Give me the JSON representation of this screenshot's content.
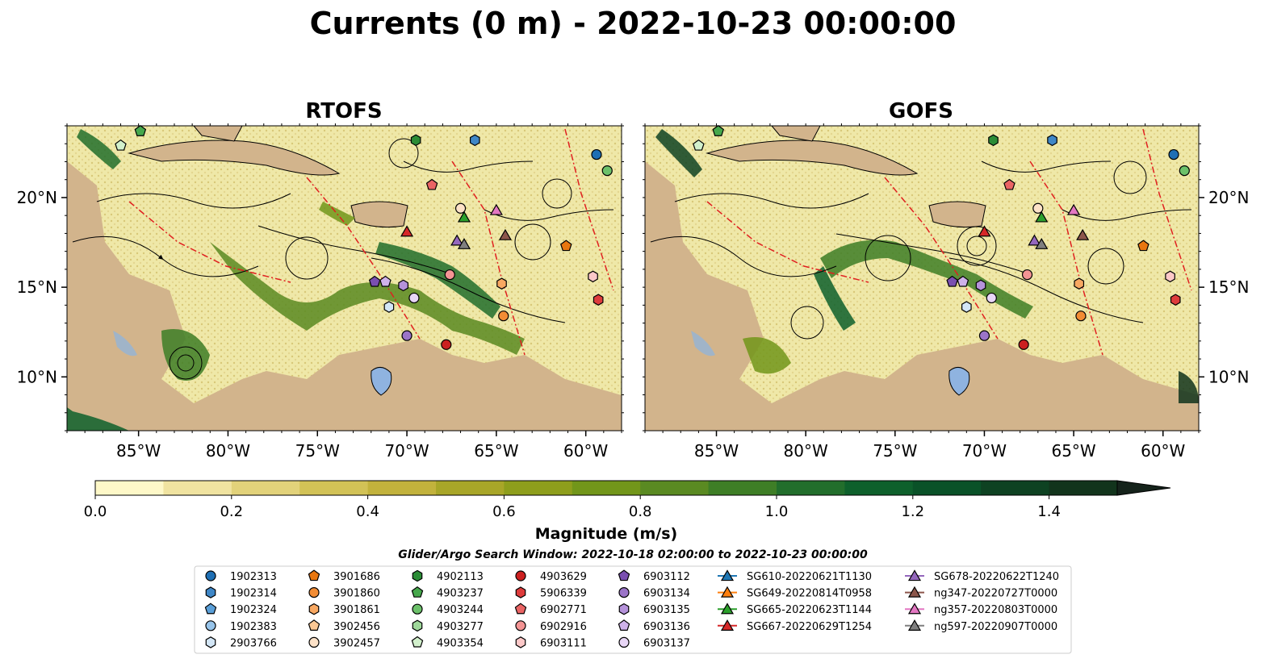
{
  "figure": {
    "title": "Currents (0 m) - 2022-10-23 00:00:00",
    "search_window": "Glider/Argo Search Window: 2022-10-18 02:00:00 to 2022-10-23 00:00:00"
  },
  "chart_data": {
    "type": "heatmap",
    "variable": "Currents (0 m)",
    "valid_time": "2022-10-23 00:00:00",
    "panels": [
      {
        "title": "RTOFS",
        "ytick_side": "left"
      },
      {
        "title": "GOFS",
        "ytick_side": "right"
      }
    ],
    "x_ticks": [
      {
        "value": -85,
        "label": "85°W"
      },
      {
        "value": -80,
        "label": "80°W"
      },
      {
        "value": -75,
        "label": "75°W"
      },
      {
        "value": -70,
        "label": "70°W"
      },
      {
        "value": -65,
        "label": "65°W"
      },
      {
        "value": -60,
        "label": "60°W"
      }
    ],
    "y_ticks": [
      {
        "value": 10,
        "label": "10°N"
      },
      {
        "value": 15,
        "label": "15°N"
      },
      {
        "value": 20,
        "label": "20°N"
      }
    ],
    "xlim": [
      -89,
      -58
    ],
    "ylim": [
      7,
      24
    ],
    "grid": false,
    "overlays": [
      "streamlines",
      "EEZ boundaries (red dash-dot)",
      "bathymetry contours",
      "coastline"
    ],
    "colorbar": {
      "label": "Magnitude (m/s)",
      "min": 0.0,
      "max": 1.5,
      "extend": "max",
      "ticks": [
        {
          "value": 0.0,
          "label": "0.0"
        },
        {
          "value": 0.2,
          "label": "0.2"
        },
        {
          "value": 0.4,
          "label": "0.4"
        },
        {
          "value": 0.6,
          "label": "0.6"
        },
        {
          "value": 0.8,
          "label": "0.8"
        },
        {
          "value": 1.0,
          "label": "1.0"
        },
        {
          "value": 1.2,
          "label": "1.2"
        },
        {
          "value": 1.4,
          "label": "1.4"
        }
      ],
      "colors": [
        "#fef8c8",
        "#f0e3a0",
        "#e2d27a",
        "#d2c256",
        "#c2b23c",
        "#a8a628",
        "#8e9e1c",
        "#72961a",
        "#5a8a22",
        "#3e7e26",
        "#226e2c",
        "#0e602c",
        "#0a5228",
        "#0e4222",
        "#12341c",
        "#142a16",
        "#15231b"
      ]
    },
    "legend": {
      "columns": [
        [
          {
            "label": "1902313",
            "marker": "circle",
            "color": "#1f6fb4"
          },
          {
            "label": "1902314",
            "marker": "hexagon",
            "color": "#3f87c7"
          },
          {
            "label": "1902324",
            "marker": "pentagon",
            "color": "#5a9fd8"
          },
          {
            "label": "1902383",
            "marker": "circle",
            "color": "#97c4ea"
          },
          {
            "label": "2903766",
            "marker": "hexagon",
            "color": "#d3e6f6"
          }
        ],
        [
          {
            "label": "3901686",
            "marker": "pentagon",
            "color": "#e8760f"
          },
          {
            "label": "3901860",
            "marker": "circle",
            "color": "#f28c34"
          },
          {
            "label": "3901861",
            "marker": "hexagon",
            "color": "#f8a862"
          },
          {
            "label": "3902456",
            "marker": "pentagon",
            "color": "#fcc894"
          },
          {
            "label": "3902457",
            "marker": "circle",
            "color": "#fde2c8"
          }
        ],
        [
          {
            "label": "4902113",
            "marker": "hexagon",
            "color": "#2b8c36"
          },
          {
            "label": "4903237",
            "marker": "pentagon",
            "color": "#46a84c"
          },
          {
            "label": "4903244",
            "marker": "circle",
            "color": "#6cc16a"
          },
          {
            "label": "4903277",
            "marker": "hexagon",
            "color": "#9fd89a"
          },
          {
            "label": "4903354",
            "marker": "pentagon",
            "color": "#d2f0cc"
          }
        ],
        [
          {
            "label": "4903629",
            "marker": "circle",
            "color": "#cc2020"
          },
          {
            "label": "5906339",
            "marker": "hexagon",
            "color": "#de3c3c"
          },
          {
            "label": "6902771",
            "marker": "pentagon",
            "color": "#ea6464"
          },
          {
            "label": "6902916",
            "marker": "circle",
            "color": "#f49494"
          },
          {
            "label": "6903111",
            "marker": "hexagon",
            "color": "#fcc8c8"
          }
        ],
        [
          {
            "label": "6903112",
            "marker": "pentagon",
            "color": "#7a4fb0"
          },
          {
            "label": "6903134",
            "marker": "circle",
            "color": "#9b74c8"
          },
          {
            "label": "6903135",
            "marker": "hexagon",
            "color": "#b592da"
          },
          {
            "label": "6903136",
            "marker": "pentagon",
            "color": "#cfb2ea"
          },
          {
            "label": "6903137",
            "marker": "circle",
            "color": "#e8d6f6"
          }
        ],
        [
          {
            "label": "SG610-20220621T1130",
            "marker": "triangle",
            "color": "#1f77b4"
          },
          {
            "label": "SG649-20220814T0958",
            "marker": "triangle",
            "color": "#ff7f0e"
          },
          {
            "label": "SG665-20220623T1144",
            "marker": "triangle",
            "color": "#2ca02c"
          },
          {
            "label": "SG667-20220629T1254",
            "marker": "triangle",
            "color": "#d62728"
          }
        ],
        [
          {
            "label": "SG678-20220622T1240",
            "marker": "triangle",
            "color": "#9467bd"
          },
          {
            "label": "ng347-20220727T0000",
            "marker": "triangle",
            "color": "#8c564b"
          },
          {
            "label": "ng357-20220803T0000",
            "marker": "triangle",
            "color": "#e377c2"
          },
          {
            "label": "ng597-20220907T0000",
            "marker": "triangle",
            "color": "#7f7f7f"
          }
        ]
      ]
    },
    "markers_on_map": [
      {
        "id": "1902313",
        "lon": -59.4,
        "lat": 22.4,
        "marker": "circle",
        "color": "#1f6fb4"
      },
      {
        "id": "1902314",
        "lon": -66.2,
        "lat": 23.2,
        "marker": "hexagon",
        "color": "#3f87c7"
      },
      {
        "id": "4903244",
        "lon": -58.8,
        "lat": 21.5,
        "marker": "circle",
        "color": "#6cc16a"
      },
      {
        "id": "4902113",
        "lon": -69.5,
        "lat": 23.2,
        "marker": "hexagon",
        "color": "#2b8c36"
      },
      {
        "id": "4903237",
        "lon": -84.9,
        "lat": 23.7,
        "marker": "pentagon",
        "color": "#46a84c"
      },
      {
        "id": "4903354",
        "lon": -86.0,
        "lat": 22.9,
        "marker": "pentagon",
        "color": "#d2f0cc"
      },
      {
        "id": "6902771",
        "lon": -68.6,
        "lat": 20.7,
        "marker": "pentagon",
        "color": "#ea6464"
      },
      {
        "id": "6902916",
        "lon": -67.6,
        "lat": 15.7,
        "marker": "circle",
        "color": "#f49494"
      },
      {
        "id": "3901686",
        "lon": -61.1,
        "lat": 17.3,
        "marker": "pentagon",
        "color": "#e8760f"
      },
      {
        "id": "3901861",
        "lon": -64.7,
        "lat": 15.2,
        "marker": "hexagon",
        "color": "#f8a862"
      },
      {
        "id": "3901860",
        "lon": -64.6,
        "lat": 13.4,
        "marker": "circle",
        "color": "#f28c34"
      },
      {
        "id": "5906339",
        "lon": -59.3,
        "lat": 14.3,
        "marker": "hexagon",
        "color": "#de3c3c"
      },
      {
        "id": "6903111",
        "lon": -59.6,
        "lat": 15.6,
        "marker": "hexagon",
        "color": "#fcc8c8"
      },
      {
        "id": "4903629",
        "lon": -67.8,
        "lat": 11.8,
        "marker": "circle",
        "color": "#cc2020"
      },
      {
        "id": "6903134",
        "lon": -70.0,
        "lat": 12.3,
        "marker": "circle",
        "color": "#9b74c8"
      },
      {
        "id": "6903137",
        "lon": -69.6,
        "lat": 14.4,
        "marker": "circle",
        "color": "#e8d6f6"
      },
      {
        "id": "6903112",
        "lon": -71.8,
        "lat": 15.3,
        "marker": "pentagon",
        "color": "#7a4fb0"
      },
      {
        "id": "6903136",
        "lon": -71.2,
        "lat": 15.3,
        "marker": "pentagon",
        "color": "#cfb2ea"
      },
      {
        "id": "6903135",
        "lon": -70.2,
        "lat": 15.1,
        "marker": "hexagon",
        "color": "#b592da"
      },
      {
        "id": "2903766",
        "lon": -71.0,
        "lat": 13.9,
        "marker": "hexagon",
        "color": "#d3e6f6"
      },
      {
        "id": "3902457",
        "lon": -67.0,
        "lat": 19.4,
        "marker": "circle",
        "color": "#fde2c8"
      },
      {
        "id": "SG665-20220623T1144",
        "lon": -66.8,
        "lat": 18.9,
        "marker": "triangle",
        "color": "#2ca02c"
      },
      {
        "id": "SG667-20220629T1254",
        "lon": -70.0,
        "lat": 18.1,
        "marker": "triangle",
        "color": "#d62728"
      },
      {
        "id": "ng357-20220803T0000",
        "lon": -65.0,
        "lat": 19.3,
        "marker": "triangle",
        "color": "#e377c2"
      },
      {
        "id": "ng347-20220727T0000",
        "lon": -64.5,
        "lat": 17.9,
        "marker": "triangle",
        "color": "#8c564b"
      },
      {
        "id": "SG678-20220622T1240",
        "lon": -67.2,
        "lat": 17.6,
        "marker": "triangle",
        "color": "#9467bd"
      },
      {
        "id": "ng597-20220907T0000",
        "lon": -66.8,
        "lat": 17.4,
        "marker": "triangle",
        "color": "#7f7f7f"
      }
    ]
  }
}
